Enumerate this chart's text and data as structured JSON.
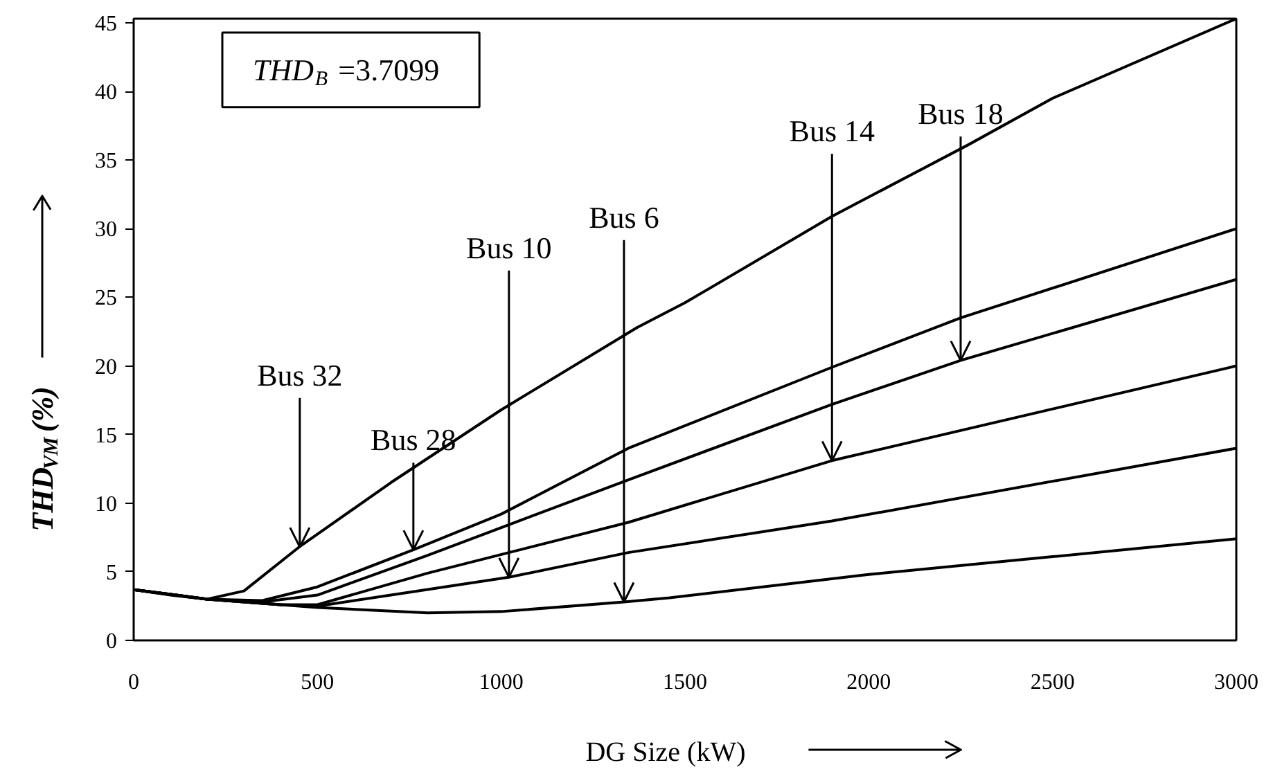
{
  "chart_data": {
    "type": "line",
    "xlabel": "DG Size (kW)",
    "ylabel": "THD$_{VM}$ (%)",
    "xlim": [
      0,
      3000
    ],
    "ylim": [
      0,
      45.3
    ],
    "xticks": [
      0,
      500,
      1000,
      1500,
      2000,
      2500,
      3000
    ],
    "yticks": [
      0,
      5,
      10,
      15,
      20,
      25,
      30,
      35,
      40,
      45
    ],
    "grid": false,
    "marker": "none",
    "line_style": "solid",
    "series": [
      {
        "color": "#000000",
        "x": [
          0,
          100,
          200,
          300,
          450,
          700,
          1000,
          1370,
          1500,
          1900,
          2270,
          2500,
          3000
        ],
        "values": [
          3.7,
          3.3,
          3.0,
          3.6,
          6.8,
          11.5,
          16.8,
          22.8,
          24.6,
          30.9,
          36.1,
          39.5,
          45.3
        ]
      },
      {
        "color": "#000000",
        "x": [
          0,
          200,
          350,
          500,
          761,
          1000,
          1346,
          1900,
          2250,
          3000
        ],
        "values": [
          3.7,
          3.0,
          2.9,
          3.9,
          6.6,
          9.2,
          14.0,
          19.9,
          23.5,
          30.0
        ]
      },
      {
        "color": "#000000",
        "x": [
          0,
          200,
          350,
          500,
          800,
          1346,
          1900,
          2250,
          3000
        ],
        "values": [
          3.7,
          3.0,
          2.8,
          3.3,
          6.2,
          11.7,
          17.2,
          20.4,
          26.3
        ]
      },
      {
        "color": "#000000",
        "x": [
          0,
          200,
          400,
          500,
          800,
          1346,
          1900,
          3000
        ],
        "values": [
          3.7,
          3.0,
          2.6,
          2.6,
          4.9,
          8.6,
          13.1,
          20.0
        ]
      },
      {
        "color": "#000000",
        "x": [
          0,
          200,
          400,
          500,
          700,
          1021,
          1346,
          1900,
          3000
        ],
        "values": [
          3.7,
          3.0,
          2.6,
          2.5,
          3.3,
          4.6,
          6.4,
          8.7,
          14.0
        ]
      },
      {
        "color": "#000000",
        "x": [
          0,
          200,
          500,
          800,
          1000,
          1334,
          1458,
          2000,
          2500,
          3000
        ],
        "values": [
          3.7,
          3.0,
          2.4,
          2.0,
          2.1,
          2.8,
          3.1,
          4.8,
          6.1,
          7.4
        ]
      }
    ],
    "annotations": [
      "THD$_{B}$ =3.7099",
      {
        "text": "Bus 32",
        "x": 452,
        "y": 6.8
      },
      {
        "text": "Bus 28",
        "x": 761,
        "y": 6.6
      },
      {
        "text": "Bus 10",
        "x": 1021,
        "y": 4.6
      },
      {
        "text": "Bus 6",
        "x": 1334,
        "y": 2.8
      },
      {
        "text": "Bus 14",
        "x": 1900,
        "y": 13.1
      },
      {
        "text": "Bus 18",
        "x": 2250,
        "y": 20.4
      }
    ]
  }
}
